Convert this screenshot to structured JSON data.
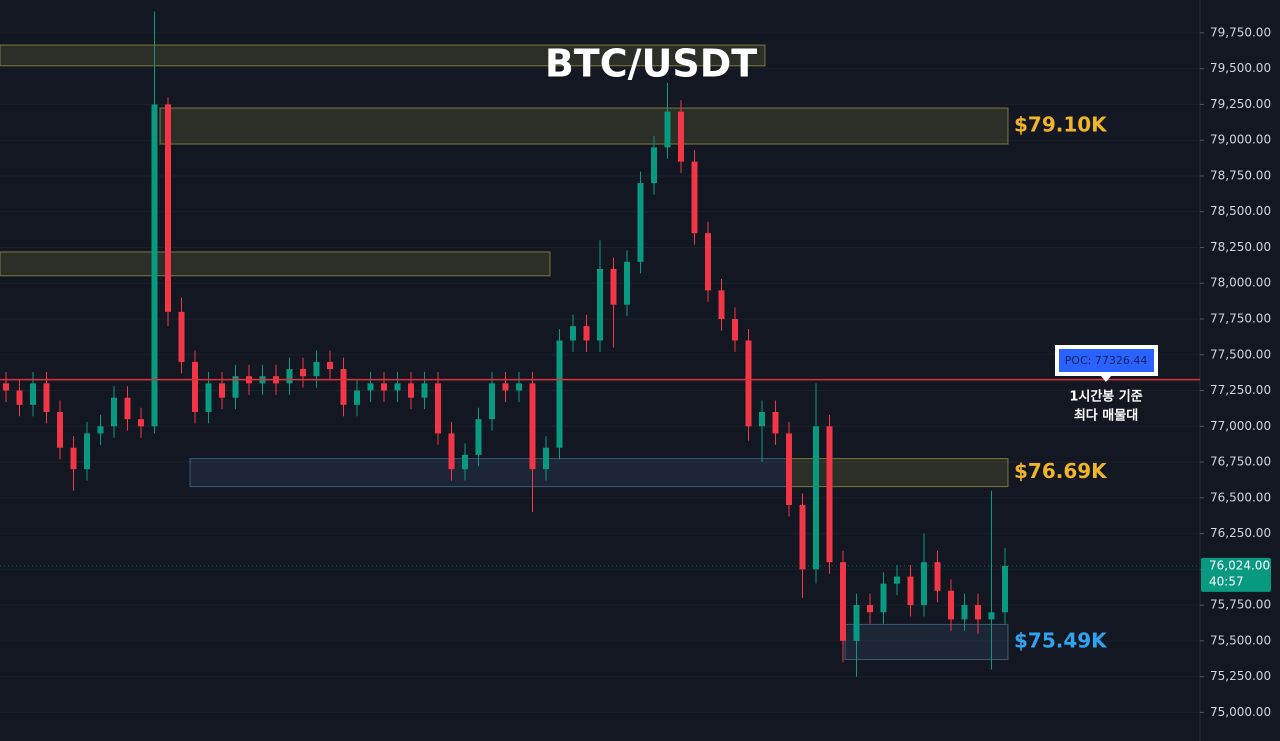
{
  "chart_data": {
    "type": "candlestick",
    "title": "BTC/USDT",
    "ylim": [
      74800,
      79980
    ],
    "yticks": [
      {
        "value": 75000,
        "label": "75,000.00"
      },
      {
        "value": 75250,
        "label": "75,250.00"
      },
      {
        "value": 75500,
        "label": "75,500.00"
      },
      {
        "value": 75750,
        "label": "75,750.00"
      },
      {
        "value": 76000,
        "label": "76,000.00"
      },
      {
        "value": 76250,
        "label": "76,250.00"
      },
      {
        "value": 76500,
        "label": "76,500.00"
      },
      {
        "value": 76750,
        "label": "76,750.00"
      },
      {
        "value": 77000,
        "label": "77,000.00"
      },
      {
        "value": 77250,
        "label": "77,250.00"
      },
      {
        "value": 77500,
        "label": "77,500.00"
      },
      {
        "value": 77750,
        "label": "77,750.00"
      },
      {
        "value": 78000,
        "label": "78,000.00"
      },
      {
        "value": 78250,
        "label": "78,250.00"
      },
      {
        "value": 78500,
        "label": "78,500.00"
      },
      {
        "value": 78750,
        "label": "78,750.00"
      },
      {
        "value": 79000,
        "label": "79,000.00"
      },
      {
        "value": 79250,
        "label": "79,250.00"
      },
      {
        "value": 79500,
        "label": "79,500.00"
      },
      {
        "value": 79750,
        "label": "79,750.00"
      }
    ],
    "grid": true,
    "up_color": "#089981",
    "down_color": "#f23645",
    "open": [
      77300,
      77250,
      77150,
      77300,
      77100,
      76850,
      76700,
      76950,
      77000,
      77200,
      77050,
      77000,
      79250,
      77800,
      77450,
      77100,
      77300,
      77200,
      77350,
      77300,
      77350,
      77300,
      77400,
      77350,
      77450,
      77400,
      77150,
      77250,
      77300,
      77250,
      77300,
      77200,
      77300,
      76950,
      76700,
      76800,
      77050,
      77300,
      77250,
      77300,
      76700,
      76850,
      77600,
      77700,
      77600,
      78100,
      77850,
      78150,
      78700,
      78950,
      79200,
      78850,
      78350,
      77950,
      77750,
      77600,
      77000,
      77100,
      76950,
      76450,
      76000,
      77000,
      76050,
      75500,
      75750,
      75700,
      75900,
      75950,
      75750,
      76050,
      75850,
      75650,
      75750,
      75650,
      75700
    ],
    "high": [
      77380,
      77330,
      77380,
      77380,
      77180,
      76930,
      77030,
      77080,
      77280,
      77280,
      77130,
      79900,
      79300,
      77900,
      77530,
      77380,
      77380,
      77430,
      77430,
      77430,
      77430,
      77480,
      77480,
      77530,
      77530,
      77480,
      77330,
      77380,
      77380,
      77380,
      77380,
      77380,
      77380,
      77030,
      76880,
      77130,
      77380,
      77380,
      77380,
      77380,
      76930,
      77680,
      77780,
      77780,
      78300,
      78180,
      78230,
      78780,
      79030,
      79400,
      79280,
      78930,
      78430,
      78030,
      77830,
      77680,
      77180,
      77180,
      77030,
      76530,
      77300,
      77080,
      76130,
      75830,
      75830,
      75980,
      76030,
      76030,
      76250,
      76130,
      75930,
      75830,
      75830,
      76550,
      76150
    ],
    "low": [
      77170,
      77070,
      77070,
      77020,
      76770,
      76550,
      76620,
      76870,
      76920,
      76970,
      76920,
      76950,
      77700,
      77370,
      77020,
      77020,
      77120,
      77120,
      77220,
      77220,
      77220,
      77220,
      77270,
      77270,
      77320,
      77070,
      77070,
      77170,
      77170,
      77170,
      77120,
      77120,
      76870,
      76620,
      76620,
      76720,
      76970,
      77170,
      77170,
      76400,
      76620,
      76770,
      77520,
      77520,
      77520,
      77550,
      77770,
      78070,
      78620,
      78870,
      78770,
      78270,
      77870,
      77670,
      77520,
      76900,
      76750,
      76870,
      76370,
      75800,
      75900,
      75970,
      75350,
      75250,
      75620,
      75620,
      75820,
      75670,
      75670,
      75770,
      75570,
      75570,
      75550,
      75300,
      75620
    ],
    "close": [
      77250,
      77150,
      77300,
      77100,
      76850,
      76700,
      76950,
      77000,
      77200,
      77050,
      77000,
      79250,
      77800,
      77450,
      77100,
      77300,
      77200,
      77350,
      77300,
      77350,
      77300,
      77400,
      77350,
      77450,
      77400,
      77150,
      77250,
      77300,
      77250,
      77300,
      77200,
      77300,
      76950,
      76700,
      76800,
      77050,
      77300,
      77250,
      77300,
      76700,
      76850,
      77600,
      77700,
      77600,
      78100,
      77850,
      78150,
      78700,
      78950,
      79200,
      78850,
      78350,
      77950,
      77750,
      77600,
      77000,
      77100,
      76950,
      76450,
      76000,
      77000,
      76050,
      75500,
      75750,
      75700,
      75900,
      75950,
      75750,
      76050,
      75850,
      75650,
      75750,
      75650,
      75700,
      76024
    ],
    "zones": [
      {
        "low": 79520,
        "high": 79665,
        "color": "#c8be50"
      },
      {
        "low": 78973,
        "high": 79225,
        "color": "#c8be50",
        "label": "$79.10K",
        "label_color": "#f0b429"
      },
      {
        "low": 78052,
        "high": 78219,
        "color": "#c8be50"
      },
      {
        "low": 76578,
        "high": 76774,
        "color": "#5a8ab4"
      },
      {
        "low": 76578,
        "high": 76774,
        "color": "#c8be50",
        "label": "$76.69K",
        "label_color": "#f0b429"
      },
      {
        "low": 75370,
        "high": 75615,
        "color": "#5a8ab4",
        "label": "$75.49K",
        "label_color": "#2ea3f2"
      }
    ],
    "poc": {
      "value": 77326.44,
      "label": "POC: 77326.44",
      "color": "#e0323c"
    },
    "annotation": [
      "1시간봉 기준",
      "최다 매물대"
    ],
    "current_price": {
      "value": 76024,
      "label": "76,024.00"
    },
    "countdown": "40:57"
  }
}
